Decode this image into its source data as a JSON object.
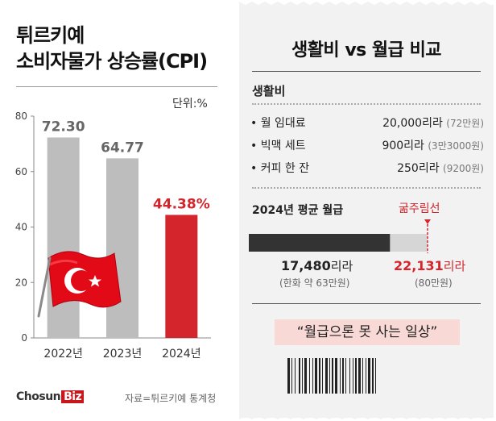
{
  "left": {
    "title_line1": "튀르키예",
    "title_line2": "소비자물가 상승률(CPI)",
    "unit": "단위:%",
    "credit_logo": "Chosun",
    "credit_logo_biz": "Biz",
    "credit_source": "자료=튀르키예 통계청"
  },
  "chart_data": {
    "type": "bar",
    "categories": [
      "2022년",
      "2023년",
      "2024년"
    ],
    "values": [
      72.3,
      64.77,
      44.38
    ],
    "value_labels": [
      "72.30",
      "64.77",
      "44.38%"
    ],
    "title": "튀르키예 소비자물가 상승률(CPI)",
    "ylabel": "단위:%",
    "ylim": [
      0,
      80
    ],
    "yticks": [
      0,
      20,
      40,
      60,
      80
    ],
    "bar_colors": [
      "#bdbdbd",
      "#bdbdbd",
      "#d4252c"
    ],
    "label_colors": [
      "#666666",
      "#666666",
      "#d4252c"
    ],
    "grid": false,
    "legend": "none"
  },
  "receipt": {
    "title": "생활비 vs 월급 비교",
    "section": "생활비",
    "costs": [
      {
        "item": "• 월 임대료",
        "price": "20,000리라",
        "krw": "(72만원)"
      },
      {
        "item": "• 빅맥 세트",
        "price": "900리라",
        "krw": "(3만3000원)"
      },
      {
        "item": "• 커피 한 잔",
        "price": "250리라",
        "krw": "(9200원)"
      }
    ],
    "wage_title": "2024년 평균 월급",
    "line_label": "굶주림선",
    "avg_wage": {
      "num": "17,480",
      "unit": "리라",
      "krw": "(한화 약 63만원)",
      "value": 17480
    },
    "hunger_line": {
      "num": "22,131",
      "unit": "리라",
      "krw": "(80만원)",
      "value": 22131
    },
    "quote": "“월급으론 못 사는 일상”"
  },
  "colors": {
    "accent_red": "#d4252c",
    "bar_gray": "#bdbdbd",
    "wage_bar": "#333333",
    "wage_track": "#d6d6d6",
    "quote_bg": "#f9d9d6"
  }
}
